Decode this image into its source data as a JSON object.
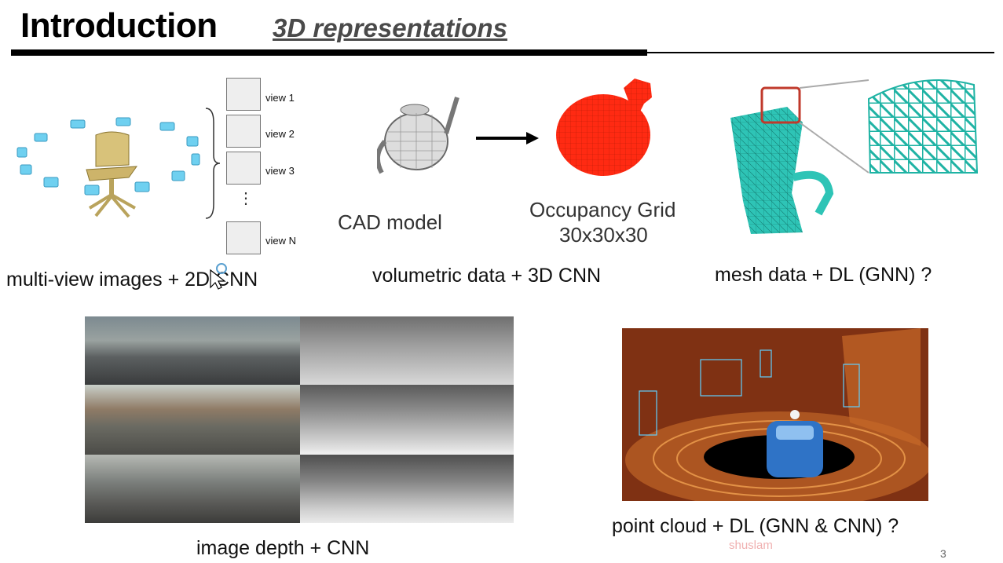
{
  "header": {
    "title": "Introduction",
    "subtitle": "3D representations"
  },
  "multiview": {
    "caption": "multi-view images + 2D CNN",
    "views": [
      "view 1",
      "view 2",
      "view 3",
      "view N"
    ],
    "ellipsis": "⋮"
  },
  "volumetric": {
    "caption": "volumetric data + 3D CNN",
    "cad_label": "CAD model",
    "grid_label": "Occupancy Grid",
    "grid_size": "30x30x30"
  },
  "mesh": {
    "caption": "mesh data + DL (GNN) ?"
  },
  "depth": {
    "caption": "image depth + CNN"
  },
  "pointcloud": {
    "caption": "point cloud + DL (GNN & CNN) ?"
  },
  "footer": {
    "watermark": "shuslam",
    "page_number": "3"
  },
  "colors": {
    "voxel": "#ff2a12",
    "mesh": "#2ec4b6",
    "highlight": "#c0392b"
  }
}
